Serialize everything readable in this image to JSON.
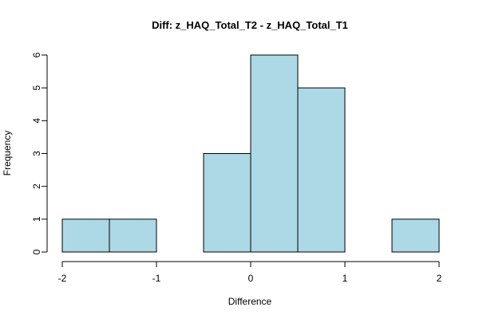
{
  "chart_data": {
    "type": "bar",
    "title": "Diff: z_HAQ_Total_T2 - z_HAQ_Total_T1",
    "xlabel": "Difference",
    "ylabel": "Frequency",
    "bins": [
      {
        "from": -2.0,
        "to": -1.5,
        "count": 1
      },
      {
        "from": -1.5,
        "to": -1.0,
        "count": 1
      },
      {
        "from": -1.0,
        "to": -0.5,
        "count": 0
      },
      {
        "from": -0.5,
        "to": 0.0,
        "count": 3
      },
      {
        "from": 0.0,
        "to": 0.5,
        "count": 6
      },
      {
        "from": 0.5,
        "to": 1.0,
        "count": 5
      },
      {
        "from": 1.0,
        "to": 1.5,
        "count": 0
      },
      {
        "from": 1.5,
        "to": 2.0,
        "count": 1
      }
    ],
    "x_ticks": [
      "-2",
      "-1",
      "0",
      "1",
      "2"
    ],
    "x_tick_values": [
      -2,
      -1,
      0,
      1,
      2
    ],
    "y_ticks": [
      "0",
      "1",
      "2",
      "3",
      "4",
      "5",
      "6"
    ],
    "y_tick_values": [
      0,
      1,
      2,
      3,
      4,
      5,
      6
    ],
    "xlim": [
      -2,
      2
    ],
    "ylim": [
      0,
      6
    ],
    "grid": false,
    "bar_fill": "#add8e6",
    "bar_stroke": "#000000"
  }
}
